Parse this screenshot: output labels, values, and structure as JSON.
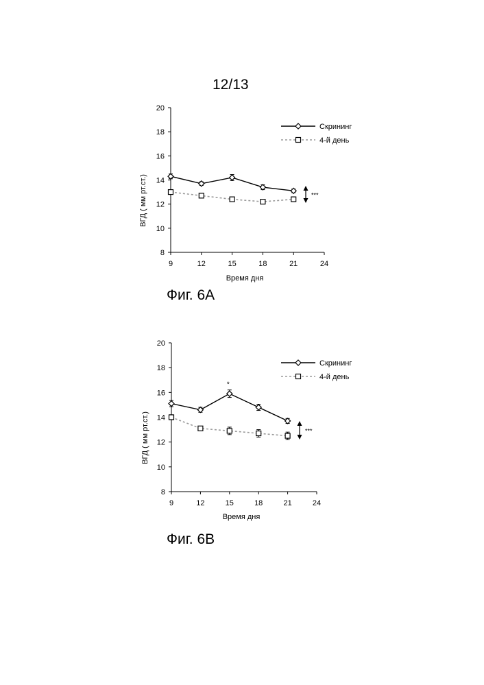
{
  "page": {
    "number": "12/13"
  },
  "chart_data": [
    {
      "type": "line",
      "caption": "Фиг. 6A",
      "xlabel": "Время дня",
      "ylabel": "ВГД  ( мм рт.ст.)",
      "x_ticks": [
        9,
        12,
        15,
        18,
        21,
        24
      ],
      "y_ticks": [
        8,
        10,
        12,
        14,
        16,
        18,
        20
      ],
      "xlim": [
        9,
        24
      ],
      "ylim": [
        8,
        20
      ],
      "legend_position": "top-right",
      "significance_label": "***",
      "point_annotations": [],
      "series": [
        {
          "name": "Скрининг",
          "marker": "diamond",
          "line": "solid",
          "color": "#000000",
          "x": [
            9,
            12,
            15,
            18,
            21
          ],
          "values": [
            14.3,
            13.7,
            14.2,
            13.4,
            13.1
          ],
          "errors": [
            0.2,
            0.15,
            0.25,
            0.2,
            0.15
          ]
        },
        {
          "name": "4-й день",
          "marker": "square",
          "line": "dashed",
          "color": "#9a9a9a",
          "x": [
            9,
            12,
            15,
            18,
            21
          ],
          "values": [
            13.0,
            12.7,
            12.4,
            12.2,
            12.4
          ],
          "errors": [
            0.15,
            0.15,
            0.15,
            0.15,
            0.2
          ]
        }
      ]
    },
    {
      "type": "line",
      "caption": "Фиг. 6B",
      "xlabel": "Время дня",
      "ylabel": "ВГД  ( мм рт.ст.)",
      "x_ticks": [
        9,
        12,
        15,
        18,
        21,
        24
      ],
      "y_ticks": [
        8,
        10,
        12,
        14,
        16,
        18,
        20
      ],
      "xlim": [
        9,
        24
      ],
      "ylim": [
        8,
        20
      ],
      "legend_position": "top-right",
      "significance_label": "***",
      "point_annotations": [
        {
          "x": 15,
          "y": 16.5,
          "text": "*"
        }
      ],
      "series": [
        {
          "name": "Скрининг",
          "marker": "diamond",
          "line": "solid",
          "color": "#000000",
          "x": [
            9,
            12,
            15,
            18,
            21
          ],
          "values": [
            15.1,
            14.6,
            15.9,
            14.8,
            13.7
          ],
          "errors": [
            0.25,
            0.2,
            0.3,
            0.25,
            0.2
          ]
        },
        {
          "name": "4-й день",
          "marker": "square",
          "line": "dashed",
          "color": "#9a9a9a",
          "x": [
            9,
            12,
            15,
            18,
            21
          ],
          "values": [
            14.0,
            13.1,
            12.9,
            12.7,
            12.5
          ],
          "errors": [
            0.2,
            0.15,
            0.3,
            0.3,
            0.3
          ]
        }
      ]
    }
  ]
}
